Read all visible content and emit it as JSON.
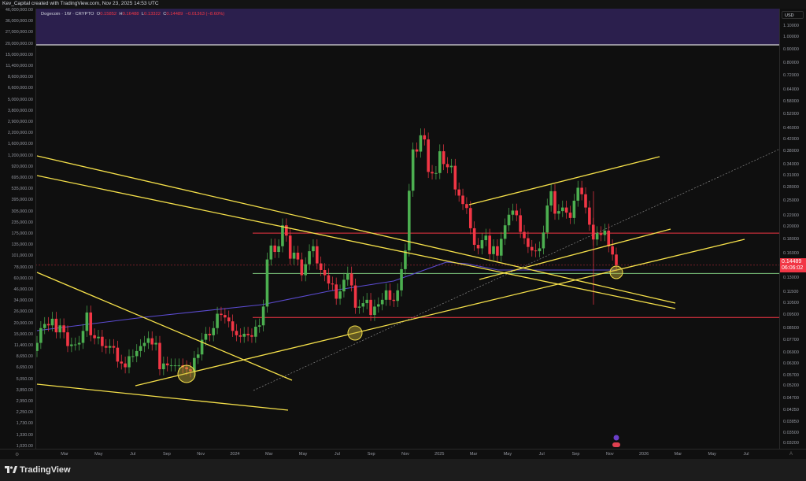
{
  "header": {
    "credit": "Kev_Capital created with TradingView.com, Nov 23, 2025 14:53 UTC"
  },
  "legend": {
    "symbol": "Dogecoin · 1W · CRYPTO",
    "o_label": "O",
    "o": "0.15852",
    "h_label": "H",
    "h": "0.16488",
    "l_label": "L",
    "l": "0.13322",
    "c_label": "C",
    "c": "0.14489",
    "change": "−0.01363 (−8.60%)"
  },
  "right_axis": {
    "currency": "USD",
    "ticks": [
      "1.10000",
      "1.00000",
      "0.90000",
      "0.80000",
      "0.72000",
      "0.64000",
      "0.58000",
      "0.52000",
      "0.46000",
      "0.42000",
      "0.38000",
      "0.34000",
      "0.31000",
      "0.28000",
      "0.25000",
      "0.22000",
      "0.20000",
      "0.18000",
      "0.16000",
      "0.13000",
      "0.11500",
      "0.10500",
      "0.09500",
      "0.08500",
      "0.07700",
      "0.06900",
      "0.06300",
      "0.05700",
      "0.05200",
      "0.04700",
      "0.04250",
      "0.03850",
      "0.03500",
      "0.03200"
    ],
    "last_price": "0.14489",
    "countdown": "06:06:02"
  },
  "left_axis": {
    "ticks": [
      "46,000,000.00",
      "36,000,000.00",
      "27,000,000.00",
      "20,000,000.00",
      "15,000,000.00",
      "11,400,000.00",
      "8,600,000.00",
      "6,600,000.00",
      "5,000,000.00",
      "3,800,000.00",
      "2,900,000.00",
      "2,200,000.00",
      "1,600,000.00",
      "1,200,000.00",
      "920,000.00",
      "695,000.00",
      "535,000.00",
      "395,000.00",
      "305,000.00",
      "235,000.00",
      "175,000.00",
      "135,000.00",
      "101,000.00",
      "78,000.00",
      "60,000.00",
      "46,000.00",
      "34,000.00",
      "26,000.00",
      "20,000.00",
      "15,000.00",
      "11,400.00",
      "8,650.00",
      "6,650.00",
      "5,050.00",
      "3,850.00",
      "2,950.00",
      "2,250.00",
      "1,730.00",
      "1,330.00",
      "1,020.00"
    ]
  },
  "time_axis": {
    "ticks": [
      "Mar",
      "May",
      "Jul",
      "Sep",
      "Nov",
      "2024",
      "Mar",
      "May",
      "Jul",
      "Sep",
      "Nov",
      "2025",
      "Mar",
      "May",
      "Jul",
      "Sep",
      "Nov",
      "2026",
      "Mar",
      "May",
      "Jul"
    ]
  },
  "footer": {
    "brand": "TradingView"
  },
  "colors": {
    "up": "#4caf50",
    "down": "#f23645",
    "trendline": "#f5e04a",
    "ma": "#5b4bd0",
    "band": "#2b1f4d",
    "support_red": "#f23645",
    "support_green": "#7fc77f"
  },
  "chart_data": {
    "type": "candlestick",
    "interval": "1W",
    "y_scale": "log",
    "ylim": [
      0.031,
      1.15
    ],
    "xrange": [
      "2023-01",
      "2026-07"
    ],
    "grid": false,
    "weekly_closes": [
      0.075,
      0.085,
      0.088,
      0.087,
      0.092,
      0.082,
      0.087,
      0.082,
      0.073,
      0.074,
      0.074,
      0.075,
      0.083,
      0.097,
      0.08,
      0.078,
      0.079,
      0.073,
      0.072,
      0.073,
      0.072,
      0.064,
      0.063,
      0.061,
      0.067,
      0.067,
      0.07,
      0.073,
      0.075,
      0.078,
      0.074,
      0.075,
      0.06,
      0.063,
      0.062,
      0.062,
      0.062,
      0.062,
      0.061,
      0.06,
      0.059,
      0.066,
      0.068,
      0.077,
      0.081,
      0.08,
      0.085,
      0.096,
      0.095,
      0.093,
      0.09,
      0.083,
      0.08,
      0.079,
      0.081,
      0.08,
      0.079,
      0.086,
      0.087,
      0.102,
      0.152,
      0.171,
      0.162,
      0.17,
      0.203,
      0.186,
      0.153,
      0.161,
      0.152,
      0.133,
      0.146,
      0.163,
      0.17,
      0.147,
      0.139,
      0.133,
      0.124,
      0.123,
      0.109,
      0.116,
      0.128,
      0.135,
      0.122,
      0.101,
      0.102,
      0.105,
      0.108,
      0.095,
      0.102,
      0.104,
      0.108,
      0.117,
      0.108,
      0.107,
      0.117,
      0.14,
      0.164,
      0.272,
      0.386,
      0.379,
      0.435,
      0.42,
      0.319,
      0.315,
      0.316,
      0.38,
      0.341,
      0.332,
      0.336,
      0.275,
      0.261,
      0.243,
      0.235,
      0.198,
      0.172,
      0.167,
      0.179,
      0.186,
      0.159,
      0.17,
      0.157,
      0.181,
      0.203,
      0.222,
      0.23,
      0.221,
      0.192,
      0.182,
      0.169,
      0.164,
      0.163,
      0.167,
      0.191,
      0.24,
      0.271,
      0.224,
      0.229,
      0.236,
      0.226,
      0.216,
      0.25,
      0.279,
      0.264,
      0.236,
      0.204,
      0.18,
      0.19,
      0.187,
      0.194,
      0.17,
      0.1585,
      0.14489
    ],
    "first_open": 0.07,
    "horizontal_levels": [
      {
        "price": 0.19,
        "color": "red"
      },
      {
        "price": 0.135,
        "color": "green"
      },
      {
        "price": 0.093,
        "color": "red"
      }
    ]
  }
}
